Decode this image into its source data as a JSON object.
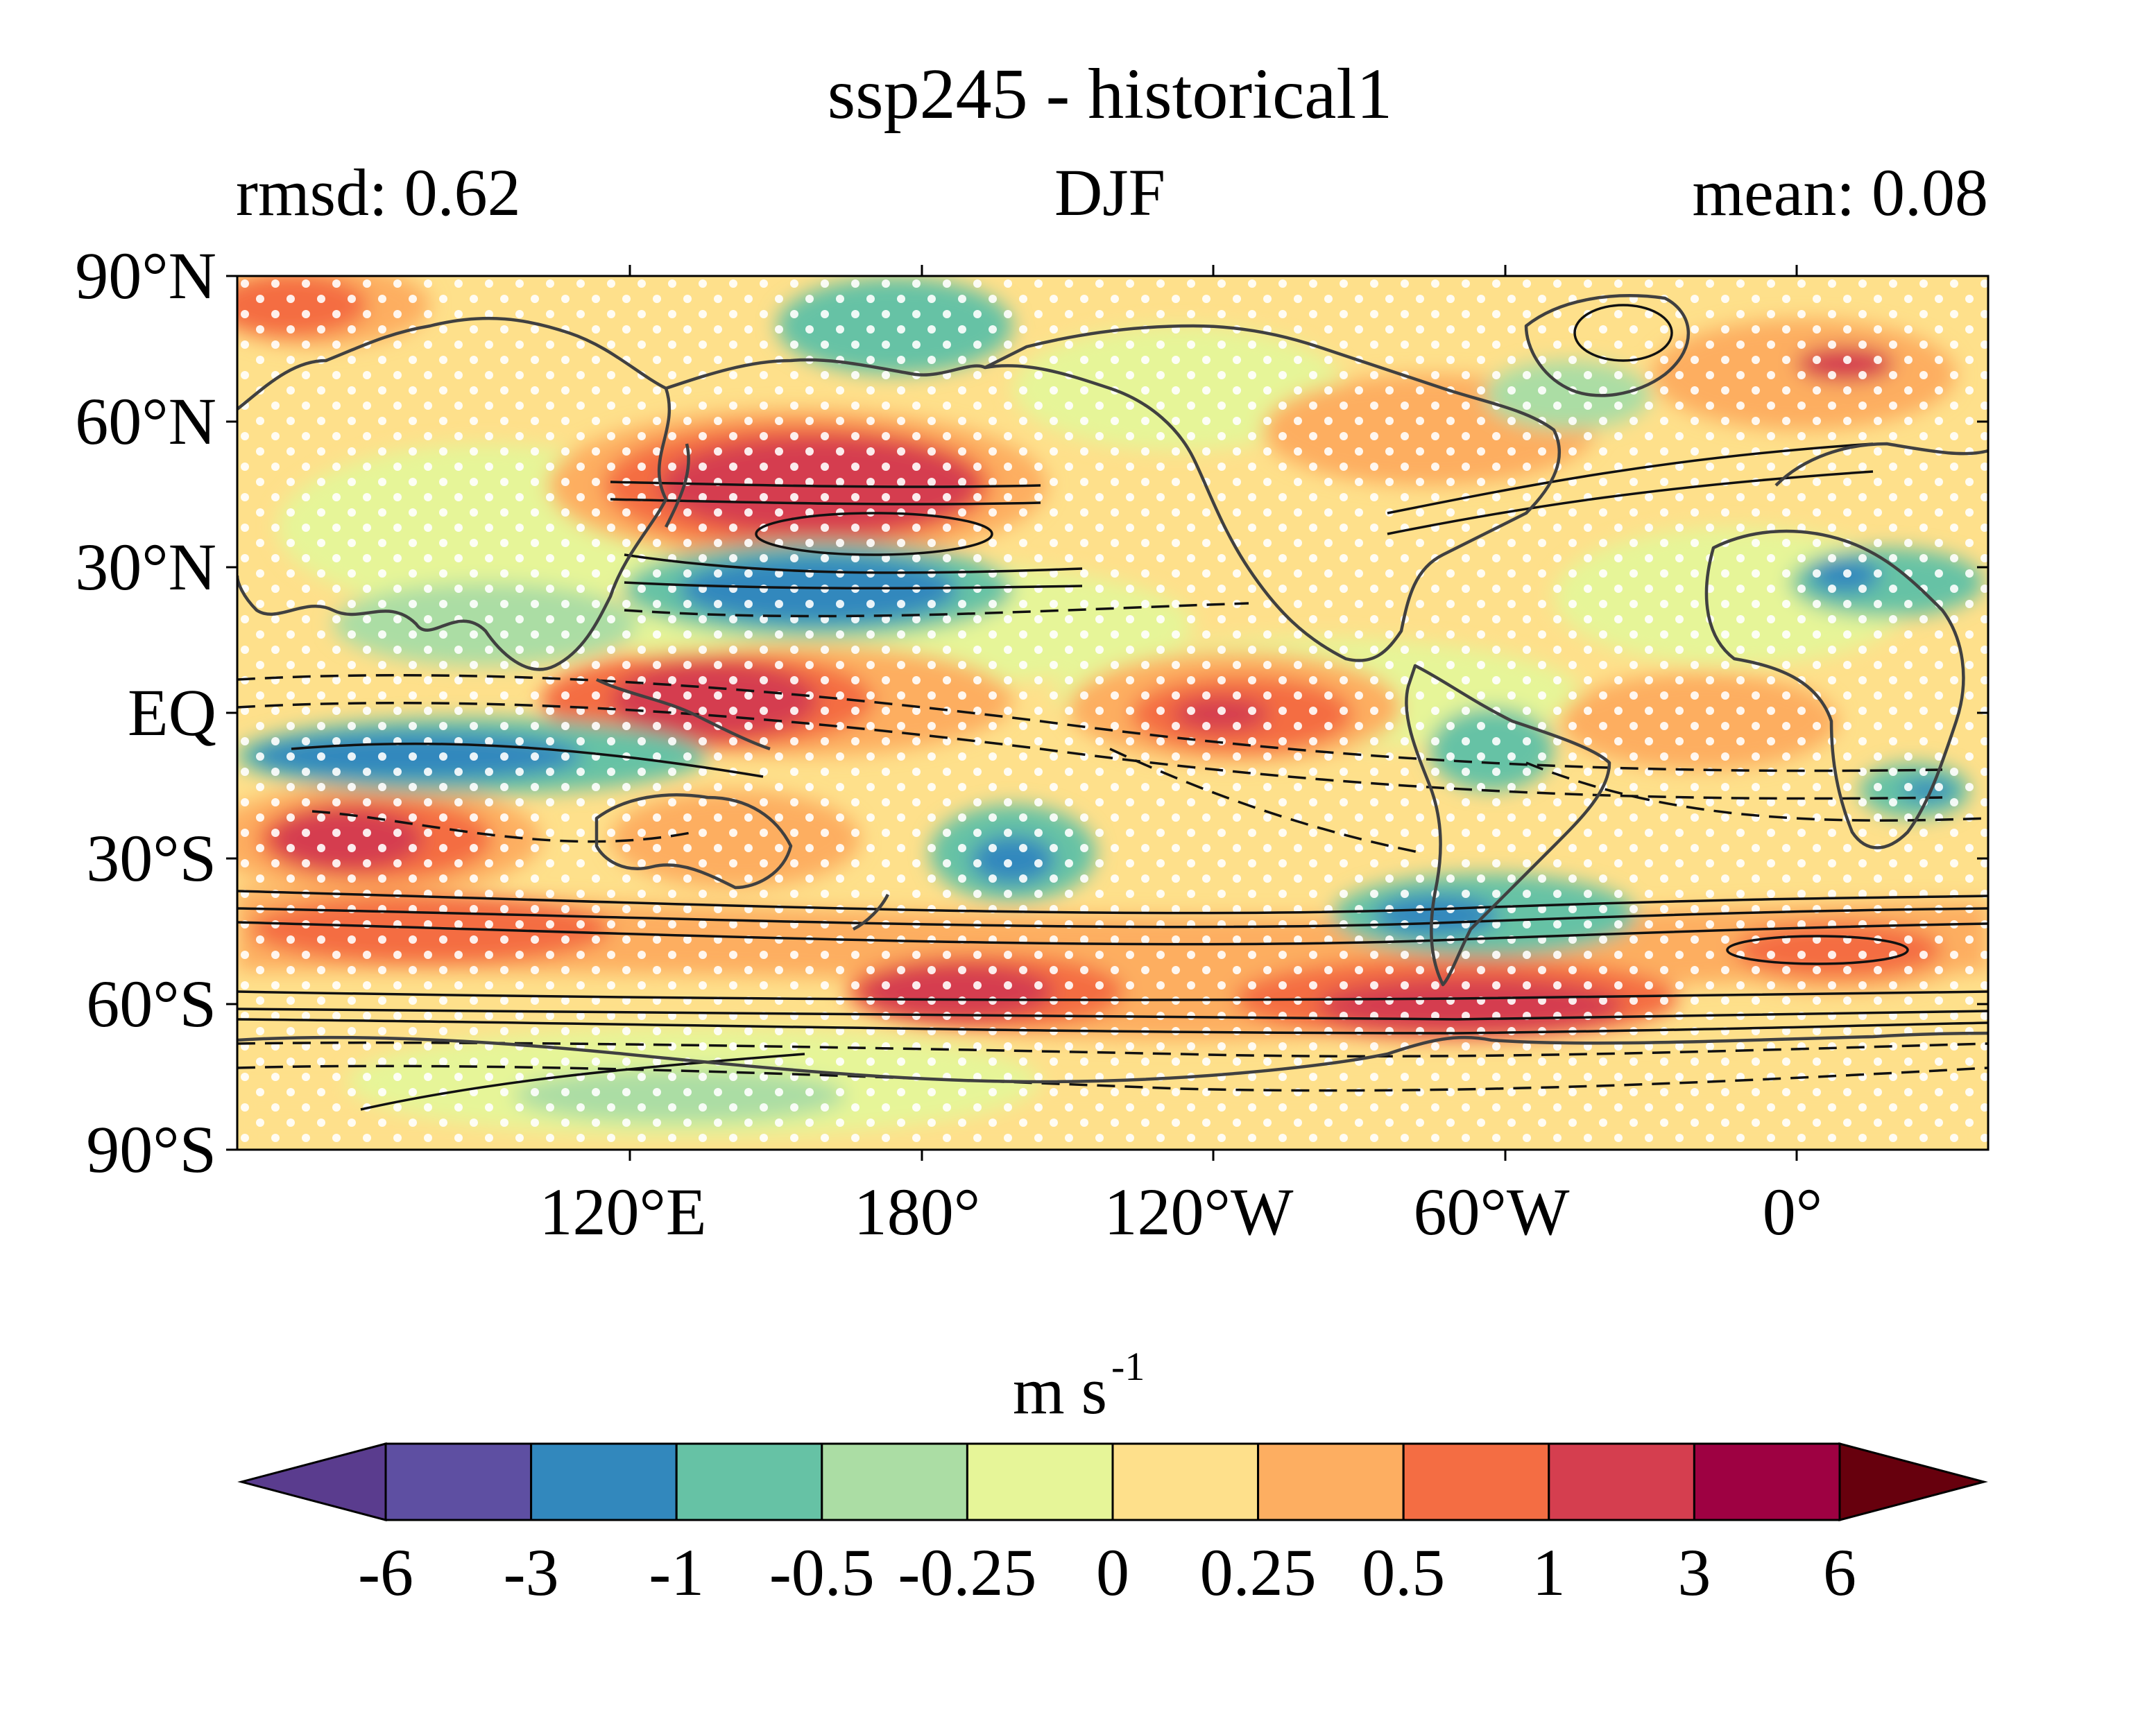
{
  "title": "ssp245 - historical1",
  "subtitle_left": "rmsd: 0.62",
  "subtitle_center": "DJF",
  "subtitle_right": "mean: 0.08",
  "map": {
    "lat_labels": [
      "90°N",
      "60°N",
      "30°N",
      "EQ",
      "30°S",
      "60°S",
      "90°S"
    ],
    "lon_labels": [
      "120°E",
      "180°",
      "120°W",
      "60°W",
      "0°"
    ]
  },
  "colorbar": {
    "units_base": "m s",
    "units_exp": "-1",
    "tick_labels": [
      "-6",
      "-3",
      "-1",
      "-0.5",
      "-0.25",
      "0",
      "0.25",
      "0.5",
      "1",
      "3",
      "6"
    ],
    "colors": [
      "#5e4fa2",
      "#3288bd",
      "#66c2a5",
      "#abdda4",
      "#e6f598",
      "#fee08b",
      "#fdae61",
      "#f46d43",
      "#d53e4f",
      "#9e0142"
    ],
    "under_color": "#5a3c8e",
    "over_color": "#67000d"
  },
  "palette": {
    "land_outline": "#404040",
    "contour": "#111111",
    "stipple": "#ffffff"
  }
}
